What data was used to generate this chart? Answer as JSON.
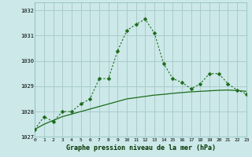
{
  "title": "Graphe pression niveau de la mer (hPa)",
  "bg_color": "#cce8e8",
  "grid_color": "#aacccc",
  "line_color": "#1a6b1a",
  "x_values": [
    0,
    1,
    2,
    3,
    4,
    5,
    6,
    7,
    8,
    9,
    10,
    11,
    12,
    13,
    14,
    15,
    16,
    17,
    18,
    19,
    20,
    21,
    22,
    23
  ],
  "line1_y": [
    1027.3,
    1027.8,
    1027.6,
    1028.0,
    1028.0,
    1028.3,
    1028.5,
    1029.3,
    1029.3,
    1030.4,
    1031.2,
    1031.45,
    1031.65,
    1031.1,
    1029.9,
    1029.3,
    1029.15,
    1028.9,
    1029.1,
    1029.5,
    1029.5,
    1029.1,
    1028.85,
    1028.7
  ],
  "line2_y": [
    1027.3,
    1027.5,
    1027.65,
    1027.8,
    1027.9,
    1028.0,
    1028.1,
    1028.2,
    1028.3,
    1028.4,
    1028.5,
    1028.55,
    1028.6,
    1028.65,
    1028.68,
    1028.72,
    1028.75,
    1028.78,
    1028.8,
    1028.82,
    1028.84,
    1028.85,
    1028.83,
    1028.8
  ],
  "ylim": [
    1027.0,
    1032.3
  ],
  "yticks": [
    1027,
    1028,
    1029,
    1030,
    1031,
    1032
  ],
  "xlim": [
    0,
    23
  ],
  "xticks": [
    0,
    1,
    2,
    3,
    4,
    5,
    6,
    7,
    8,
    9,
    10,
    11,
    12,
    13,
    14,
    15,
    16,
    17,
    18,
    19,
    20,
    21,
    22,
    23
  ]
}
